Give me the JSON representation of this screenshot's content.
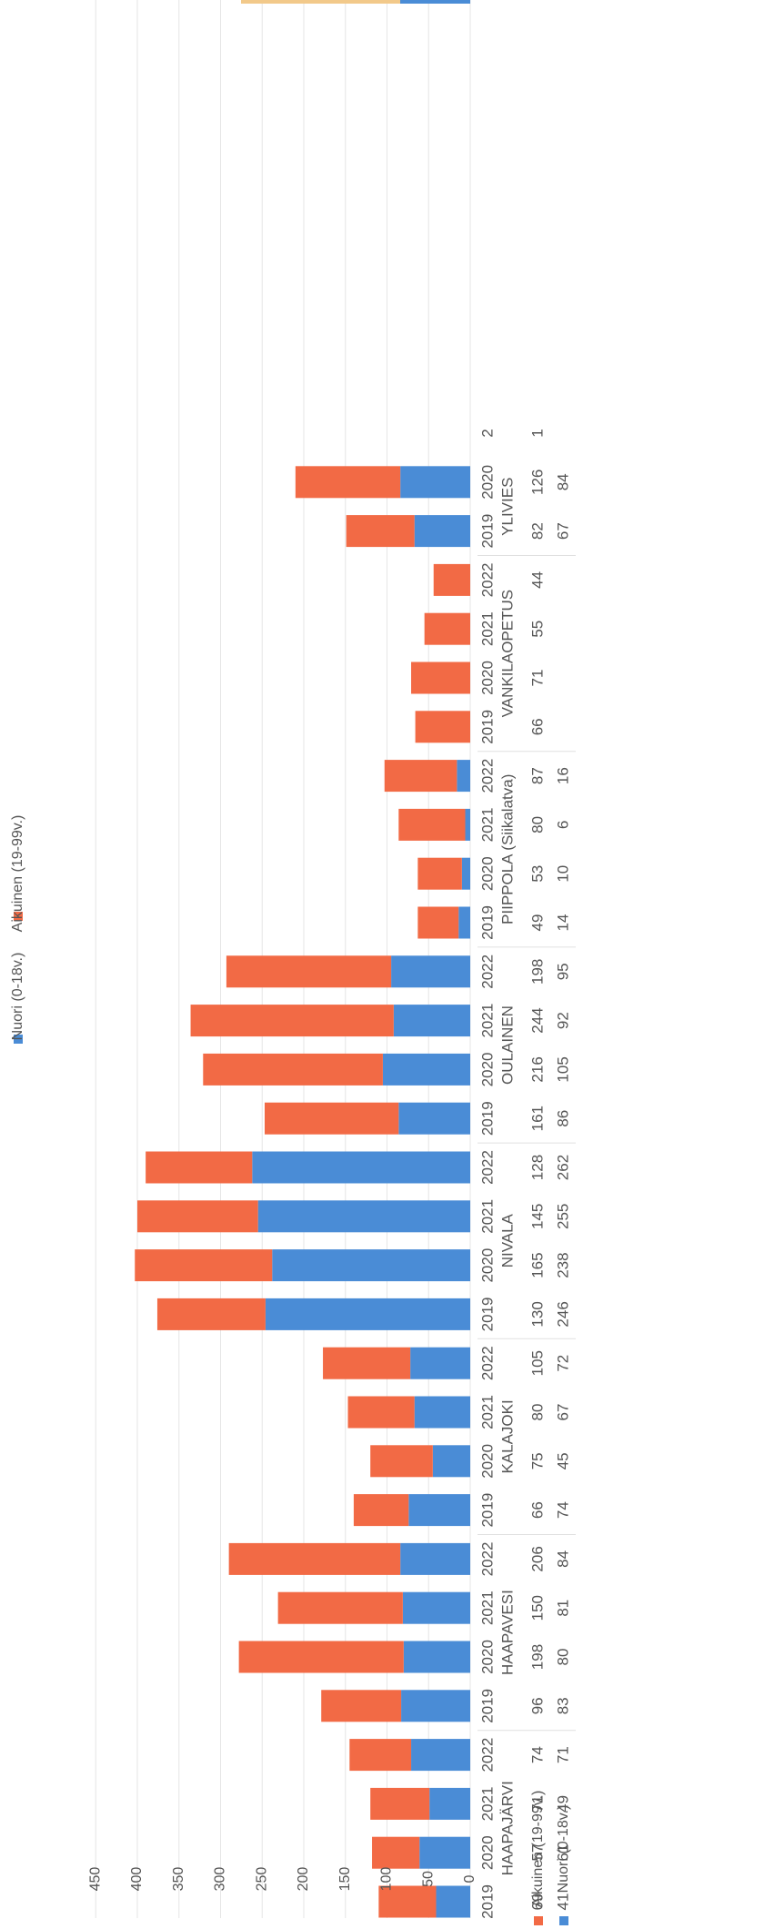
{
  "chart_data": {
    "type": "bar",
    "stacked": true,
    "orientation": "rotated-90",
    "ylim": [
      0,
      450
    ],
    "y_ticks": [
      "0",
      "50",
      "100",
      "150",
      "200",
      "250",
      "300",
      "350",
      "400",
      "450"
    ],
    "grid": true,
    "legend_position": "top",
    "groups": [
      {
        "name": "HAAPAJÄRVI",
        "years": [
          "2019",
          "2020",
          "2021",
          "2022"
        ]
      },
      {
        "name": "HAAPAVESI",
        "years": [
          "2019",
          "2020",
          "2021",
          "2022"
        ]
      },
      {
        "name": "KALAJOKI",
        "years": [
          "2019",
          "2020",
          "2021",
          "2022"
        ]
      },
      {
        "name": "NIVALA",
        "years": [
          "2019",
          "2020",
          "2021",
          "2022"
        ]
      },
      {
        "name": "OULAINEN",
        "years": [
          "2019",
          "2020",
          "2021",
          "2022"
        ]
      },
      {
        "name": "PIIPPOLA (Siikalatva)",
        "years": [
          "2019",
          "2020",
          "2021",
          "2022"
        ]
      },
      {
        "name": "VANKILAOPETUS",
        "years": [
          "2019",
          "2020",
          "2021",
          "2022"
        ]
      },
      {
        "name": "YLIVIES",
        "years": [
          "2019",
          "2020"
        ]
      }
    ],
    "series": [
      {
        "name": "Nuori (0-18v.)",
        "color": "#4a8cd6",
        "values": [
          "41",
          "61",
          "49",
          "71",
          "83",
          "80",
          "81",
          "84",
          "74",
          "45",
          "67",
          "72",
          "246",
          "238",
          "255",
          "262",
          "86",
          "105",
          "92",
          "95",
          "14",
          "10",
          "6",
          "16",
          "",
          "",
          "",
          "",
          "67",
          "84"
        ]
      },
      {
        "name": "Aikuinen (19-99v.)",
        "color": "#f26a45",
        "values": [
          "69",
          "57",
          "71",
          "74",
          "96",
          "198",
          "150",
          "206",
          "66",
          "75",
          "80",
          "105",
          "130",
          "165",
          "145",
          "128",
          "161",
          "216",
          "244",
          "198",
          "49",
          "53",
          "80",
          "87",
          "66",
          "71",
          "55",
          "44",
          "82",
          "126"
        ]
      }
    ],
    "cutoff": {
      "year": "2",
      "series_values": [
        "1"
      ]
    }
  }
}
